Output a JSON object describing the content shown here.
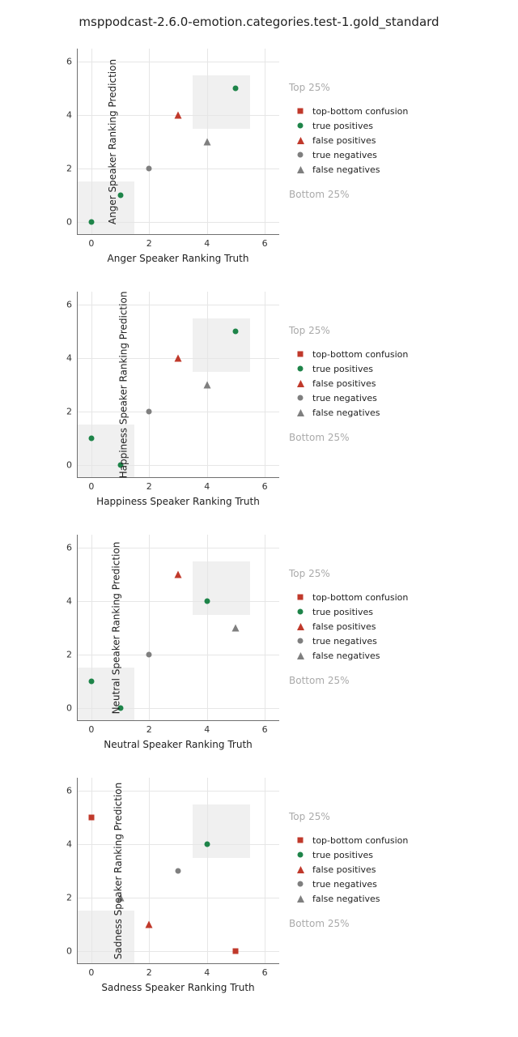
{
  "title": "msppodcast-2.6.0-emotion.categories.test-1.gold_standard",
  "colors": {
    "tb_confusion": "#c0392b",
    "true_pos": "#1e8449",
    "false_pos": "#c0392b",
    "true_neg": "#7f7f7f",
    "false_neg": "#7f7f7f",
    "grid": "#e6e6e6",
    "shade": "#f0f0f0",
    "annot": "#aaaaaa",
    "spine": "#707070",
    "text": "#222222",
    "bg": "#ffffff"
  },
  "axis": {
    "lim": [
      -0.5,
      6.5
    ],
    "ticks": [
      0,
      2,
      4,
      6
    ],
    "shade_low": [
      -0.5,
      1.5
    ],
    "shade_high": [
      3.5,
      5.5
    ]
  },
  "annotations": {
    "top": "Top 25%",
    "bottom": "Bottom 25%"
  },
  "legend": [
    {
      "label": "top-bottom confusion",
      "shape": "square",
      "colorKey": "tb_confusion"
    },
    {
      "label": "true positives",
      "shape": "circle",
      "colorKey": "true_pos"
    },
    {
      "label": "false positives",
      "shape": "triangle",
      "colorKey": "false_pos"
    },
    {
      "label": "true negatives",
      "shape": "circle",
      "colorKey": "true_neg"
    },
    {
      "label": "false negatives",
      "shape": "triangle",
      "colorKey": "false_neg"
    }
  ],
  "marker_sizes": {
    "circle": 8,
    "square": 8,
    "triangle": 9
  },
  "label_fontsize": 12,
  "tick_fontsize": 11,
  "title_fontsize": 15,
  "panels": [
    {
      "emotion": "Anger",
      "xlabel": "Anger Speaker Ranking Truth",
      "ylabel": "Anger Speaker Ranking Prediction",
      "points": [
        {
          "x": 0,
          "y": 0,
          "shape": "circle",
          "colorKey": "true_pos"
        },
        {
          "x": 1,
          "y": 1,
          "shape": "circle",
          "colorKey": "true_pos"
        },
        {
          "x": 2,
          "y": 2,
          "shape": "circle",
          "colorKey": "true_neg"
        },
        {
          "x": 3,
          "y": 4,
          "shape": "triangle",
          "colorKey": "false_pos"
        },
        {
          "x": 4,
          "y": 3,
          "shape": "triangle",
          "colorKey": "false_neg"
        },
        {
          "x": 5,
          "y": 5,
          "shape": "circle",
          "colorKey": "true_pos"
        }
      ]
    },
    {
      "emotion": "Happiness",
      "xlabel": "Happiness Speaker Ranking Truth",
      "ylabel": "Happiness Speaker Ranking Prediction",
      "points": [
        {
          "x": 0,
          "y": 1,
          "shape": "circle",
          "colorKey": "true_pos"
        },
        {
          "x": 1,
          "y": 0,
          "shape": "circle",
          "colorKey": "true_pos"
        },
        {
          "x": 2,
          "y": 2,
          "shape": "circle",
          "colorKey": "true_neg"
        },
        {
          "x": 3,
          "y": 4,
          "shape": "triangle",
          "colorKey": "false_pos"
        },
        {
          "x": 4,
          "y": 3,
          "shape": "triangle",
          "colorKey": "false_neg"
        },
        {
          "x": 5,
          "y": 5,
          "shape": "circle",
          "colorKey": "true_pos"
        }
      ]
    },
    {
      "emotion": "Neutral",
      "xlabel": "Neutral Speaker Ranking Truth",
      "ylabel": "Neutral Speaker Ranking Prediction",
      "points": [
        {
          "x": 0,
          "y": 1,
          "shape": "circle",
          "colorKey": "true_pos"
        },
        {
          "x": 1,
          "y": 0,
          "shape": "circle",
          "colorKey": "true_pos"
        },
        {
          "x": 2,
          "y": 2,
          "shape": "circle",
          "colorKey": "true_neg"
        },
        {
          "x": 3,
          "y": 5,
          "shape": "triangle",
          "colorKey": "false_pos"
        },
        {
          "x": 4,
          "y": 4,
          "shape": "circle",
          "colorKey": "true_pos"
        },
        {
          "x": 5,
          "y": 3,
          "shape": "triangle",
          "colorKey": "false_neg"
        }
      ]
    },
    {
      "emotion": "Sadness",
      "xlabel": "Sadness Speaker Ranking Truth",
      "ylabel": "Sadness Speaker Ranking Prediction",
      "points": [
        {
          "x": 0,
          "y": 5,
          "shape": "square",
          "colorKey": "tb_confusion"
        },
        {
          "x": 1,
          "y": 2,
          "shape": "triangle",
          "colorKey": "false_neg"
        },
        {
          "x": 2,
          "y": 1,
          "shape": "triangle",
          "colorKey": "false_pos"
        },
        {
          "x": 3,
          "y": 3,
          "shape": "circle",
          "colorKey": "true_neg"
        },
        {
          "x": 4,
          "y": 4,
          "shape": "circle",
          "colorKey": "true_pos"
        },
        {
          "x": 5,
          "y": 0,
          "shape": "square",
          "colorKey": "tb_confusion"
        }
      ]
    }
  ]
}
